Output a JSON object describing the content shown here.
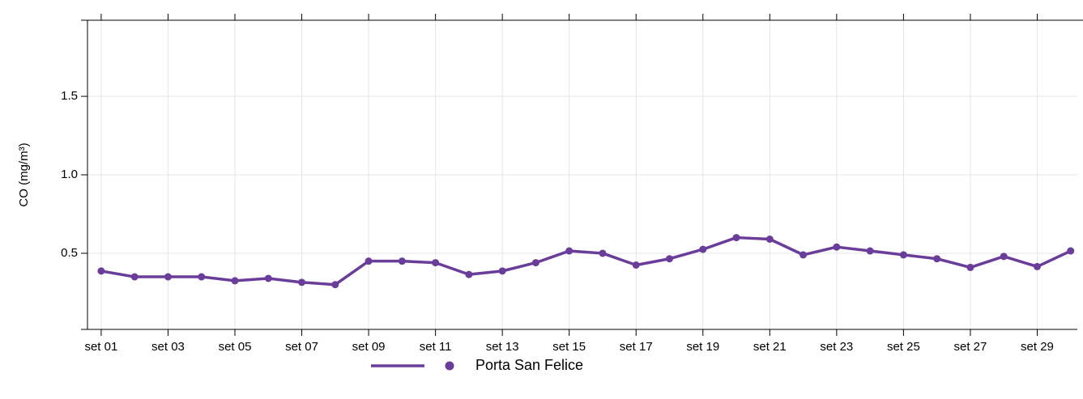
{
  "chart_data": {
    "type": "line",
    "y_label": "CO (mg/m³)",
    "categories": [
      "set 01",
      null,
      "set 03",
      null,
      "set 05",
      null,
      "set 07",
      null,
      "set 09",
      null,
      "set 11",
      null,
      "set 13",
      null,
      "set 15",
      null,
      "set 17",
      null,
      "set 19",
      null,
      "set 21",
      null,
      "set 23",
      null,
      "set 25",
      null,
      "set 27",
      null,
      "set 29",
      null
    ],
    "series": [
      {
        "name": "Porta San Felice",
        "color": "#6a3d9a",
        "values": [
          0.387,
          0.35,
          0.35,
          0.35,
          0.325,
          0.34,
          0.315,
          0.3,
          0.45,
          0.45,
          0.44,
          0.365,
          0.387,
          0.44,
          0.515,
          0.5,
          0.425,
          0.465,
          0.525,
          0.6,
          0.59,
          0.49,
          0.54,
          0.515,
          0.49,
          0.465,
          0.41,
          0.48,
          0.415,
          0.515
        ]
      }
    ],
    "ylim": [
      0.015,
      1.985
    ],
    "yticks": [
      0.5,
      {
        "value": 1,
        "label": "1.0"
      },
      1.5
    ],
    "grid": true,
    "legend": "bottom"
  }
}
